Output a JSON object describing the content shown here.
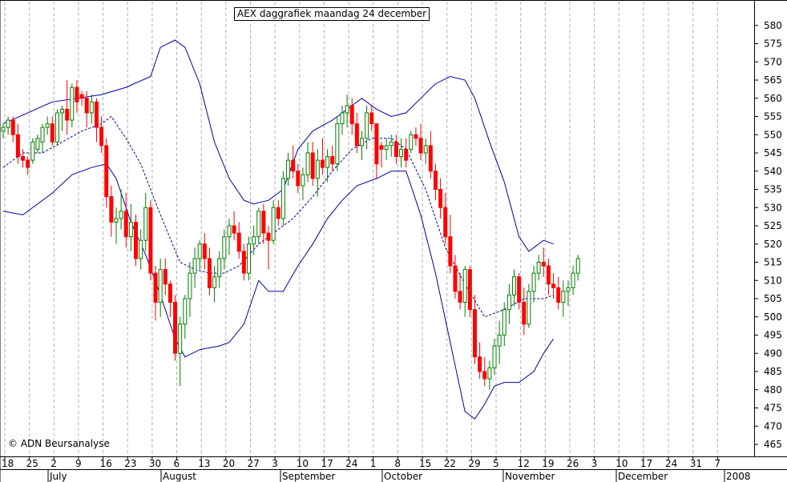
{
  "chart_data": {
    "type": "candlestick",
    "title": "AEX daggrafiek maandag 24 december",
    "credit": "© ADN Beursanalyse",
    "ylim": [
      460,
      585
    ],
    "y_ticks": [
      465,
      470,
      475,
      480,
      485,
      490,
      495,
      500,
      505,
      510,
      515,
      520,
      525,
      530,
      535,
      540,
      545,
      550,
      555,
      560,
      565,
      570,
      575,
      580
    ],
    "x_ticks": [
      "18",
      "25",
      "2",
      "9",
      "16",
      "23",
      "30",
      "6",
      "13",
      "20",
      "27",
      "3",
      "10",
      "17",
      "24",
      "1",
      "8",
      "15",
      "22",
      "29",
      "5",
      "12",
      "19",
      "26",
      "3",
      "10",
      "17",
      "24",
      "31",
      "7"
    ],
    "months": [
      "July",
      "August",
      "September",
      "October",
      "November",
      "December",
      "2008"
    ],
    "colors": {
      "up": "#008000",
      "down": "#ff0000",
      "band": "#0000aa",
      "grid": "#b0b0b0"
    },
    "candles": [
      [
        551,
        553,
        549,
        552
      ],
      [
        552,
        555,
        550,
        554
      ],
      [
        554,
        555,
        548,
        550
      ],
      [
        550,
        553,
        542,
        544
      ],
      [
        544,
        546,
        541,
        543
      ],
      [
        543,
        544,
        539,
        541
      ],
      [
        543,
        549,
        542,
        548
      ],
      [
        546,
        550,
        545,
        549
      ],
      [
        548,
        553,
        545,
        552
      ],
      [
        552,
        555,
        550,
        553
      ],
      [
        553,
        555,
        547,
        548
      ],
      [
        548,
        557,
        547,
        556
      ],
      [
        556,
        558,
        551,
        557
      ],
      [
        557,
        565,
        550,
        554
      ],
      [
        554,
        564,
        552,
        563
      ],
      [
        563,
        565,
        556,
        559
      ],
      [
        561,
        562,
        558,
        560
      ],
      [
        560,
        562,
        552,
        556
      ],
      [
        556,
        561,
        553,
        559
      ],
      [
        559,
        560,
        548,
        552
      ],
      [
        552,
        555,
        545,
        547
      ],
      [
        547,
        549,
        530,
        533
      ],
      [
        533,
        536,
        522,
        526
      ],
      [
        526,
        530,
        520,
        527
      ],
      [
        527,
        535,
        524,
        529
      ],
      [
        529,
        534,
        519,
        522
      ],
      [
        522,
        531,
        518,
        526
      ],
      [
        526,
        528,
        514,
        516
      ],
      [
        516,
        524,
        513,
        521
      ],
      [
        521,
        534,
        518,
        530
      ],
      [
        530,
        532,
        510,
        512
      ],
      [
        512,
        514,
        499,
        504
      ],
      [
        504,
        516,
        500,
        513
      ],
      [
        513,
        516,
        506,
        509
      ],
      [
        509,
        510,
        500,
        504
      ],
      [
        504,
        506,
        488,
        490
      ],
      [
        490,
        500,
        481,
        498
      ],
      [
        498,
        506,
        494,
        505
      ],
      [
        505,
        515,
        500,
        512
      ],
      [
        512,
        519,
        508,
        516
      ],
      [
        516,
        521,
        513,
        520
      ],
      [
        520,
        523,
        513,
        516
      ],
      [
        516,
        519,
        506,
        508
      ],
      [
        508,
        514,
        504,
        511
      ],
      [
        511,
        518,
        508,
        516
      ],
      [
        516,
        524,
        513,
        522
      ],
      [
        522,
        527,
        517,
        525
      ],
      [
        525,
        529,
        521,
        523
      ],
      [
        523,
        526,
        516,
        518
      ],
      [
        518,
        520,
        510,
        512
      ],
      [
        512,
        522,
        510,
        520
      ],
      [
        520,
        525,
        517,
        522
      ],
      [
        522,
        530,
        520,
        529
      ],
      [
        529,
        531,
        520,
        523
      ],
      [
        523,
        525,
        513,
        521
      ],
      [
        521,
        532,
        520,
        530
      ],
      [
        530,
        532,
        525,
        527
      ],
      [
        527,
        540,
        525,
        538
      ],
      [
        538,
        545,
        536,
        543
      ],
      [
        543,
        547,
        538,
        540
      ],
      [
        540,
        542,
        534,
        536
      ],
      [
        536,
        541,
        532,
        539
      ],
      [
        539,
        548,
        537,
        545
      ],
      [
        545,
        548,
        536,
        538
      ],
      [
        538,
        546,
        533,
        543
      ],
      [
        543,
        549,
        539,
        541
      ],
      [
        541,
        546,
        537,
        544
      ],
      [
        544,
        547,
        540,
        542
      ],
      [
        542,
        555,
        540,
        553
      ],
      [
        553,
        558,
        550,
        556
      ],
      [
        556,
        561,
        552,
        558
      ],
      [
        558,
        560,
        550,
        553
      ],
      [
        553,
        556,
        545,
        547
      ],
      [
        547,
        551,
        543,
        549
      ],
      [
        549,
        558,
        546,
        556
      ],
      [
        556,
        558,
        551,
        553
      ],
      [
        553,
        553,
        538,
        542
      ],
      [
        547,
        548,
        541,
        546
      ],
      [
        546,
        549,
        543,
        547
      ],
      [
        547,
        550,
        544,
        548
      ],
      [
        548,
        550,
        542,
        544
      ],
      [
        544,
        549,
        541,
        546
      ],
      [
        546,
        549,
        541,
        543
      ],
      [
        546,
        551,
        545,
        550
      ],
      [
        550,
        552,
        547,
        549
      ],
      [
        549,
        553,
        543,
        545
      ],
      [
        545,
        549,
        542,
        547
      ],
      [
        547,
        551,
        538,
        540
      ],
      [
        540,
        542,
        532,
        535
      ],
      [
        535,
        538,
        527,
        530
      ],
      [
        530,
        534,
        520,
        522
      ],
      [
        522,
        528,
        512,
        514
      ],
      [
        514,
        517,
        505,
        507
      ],
      [
        507,
        512,
        502,
        504
      ],
      [
        504,
        514,
        500,
        513
      ],
      [
        513,
        514,
        500,
        502
      ],
      [
        502,
        506,
        487,
        489
      ],
      [
        489,
        493,
        483,
        485
      ],
      [
        485,
        489,
        481,
        483
      ],
      [
        483,
        488,
        480,
        486
      ],
      [
        486,
        494,
        484,
        492
      ],
      [
        492,
        499,
        487,
        495
      ],
      [
        495,
        504,
        492,
        502
      ],
      [
        502,
        509,
        498,
        506
      ],
      [
        506,
        513,
        503,
        511
      ],
      [
        511,
        512,
        502,
        504
      ],
      [
        504,
        508,
        495,
        498
      ],
      [
        498,
        509,
        497,
        507
      ],
      [
        507,
        514,
        504,
        512
      ],
      [
        512,
        517,
        510,
        515
      ],
      [
        515,
        519,
        511,
        514
      ],
      [
        514,
        516,
        506,
        509
      ],
      [
        509,
        512,
        505,
        508
      ],
      [
        508,
        511,
        502,
        504
      ],
      [
        504,
        510,
        500,
        507
      ],
      [
        507,
        510,
        503,
        508
      ],
      [
        508,
        514,
        506,
        512
      ],
      [
        512,
        517,
        510,
        516
      ]
    ],
    "upper_band": [
      [
        0,
        553
      ],
      [
        10,
        559
      ],
      [
        20,
        561
      ],
      [
        25,
        563
      ],
      [
        30,
        566
      ],
      [
        32,
        574
      ],
      [
        35,
        576
      ],
      [
        37,
        574
      ],
      [
        40,
        564
      ],
      [
        43,
        548
      ],
      [
        46,
        538
      ],
      [
        49,
        532
      ],
      [
        51,
        531
      ],
      [
        54,
        532
      ],
      [
        57,
        535
      ],
      [
        60,
        546
      ],
      [
        63,
        551
      ],
      [
        67,
        554
      ],
      [
        70,
        557
      ],
      [
        73,
        560
      ],
      [
        76,
        557
      ],
      [
        79,
        555
      ],
      [
        82,
        556
      ],
      [
        85,
        560
      ],
      [
        88,
        564
      ],
      [
        91,
        566
      ],
      [
        94,
        565
      ],
      [
        96,
        560
      ],
      [
        99,
        548
      ],
      [
        102,
        537
      ],
      [
        105,
        522
      ],
      [
        107,
        518
      ],
      [
        110,
        521
      ],
      [
        112,
        520
      ]
    ],
    "lower_band": [
      [
        0,
        529
      ],
      [
        4,
        528
      ],
      [
        10,
        534
      ],
      [
        14,
        539
      ],
      [
        18,
        541
      ],
      [
        21,
        542
      ],
      [
        23,
        538
      ],
      [
        26,
        526
      ],
      [
        29,
        517
      ],
      [
        32,
        506
      ],
      [
        35,
        494
      ],
      [
        37,
        489
      ],
      [
        40,
        491
      ],
      [
        44,
        492
      ],
      [
        46,
        493
      ],
      [
        49,
        498
      ],
      [
        52,
        510
      ],
      [
        54,
        507
      ],
      [
        57,
        507
      ],
      [
        60,
        514
      ],
      [
        63,
        520
      ],
      [
        66,
        527
      ],
      [
        69,
        532
      ],
      [
        72,
        536
      ],
      [
        76,
        538
      ],
      [
        79,
        540
      ],
      [
        82,
        540
      ],
      [
        85,
        528
      ],
      [
        88,
        512
      ],
      [
        91,
        493
      ],
      [
        94,
        474
      ],
      [
        96,
        472
      ],
      [
        98,
        476
      ],
      [
        100,
        481
      ],
      [
        102,
        482
      ],
      [
        105,
        482
      ],
      [
        108,
        485
      ],
      [
        110,
        490
      ],
      [
        112,
        494
      ]
    ],
    "middle_band": [
      [
        0,
        541
      ],
      [
        4,
        545
      ],
      [
        8,
        545
      ],
      [
        12,
        548
      ],
      [
        16,
        551
      ],
      [
        20,
        553
      ],
      [
        22,
        555
      ],
      [
        25,
        549
      ],
      [
        28,
        542
      ],
      [
        32,
        528
      ],
      [
        36,
        515
      ],
      [
        39,
        513
      ],
      [
        42,
        512
      ],
      [
        45,
        512
      ],
      [
        48,
        514
      ],
      [
        52,
        520
      ],
      [
        55,
        523
      ],
      [
        59,
        527
      ],
      [
        63,
        533
      ],
      [
        67,
        540
      ],
      [
        71,
        546
      ],
      [
        75,
        549
      ],
      [
        79,
        549
      ],
      [
        82,
        546
      ],
      [
        86,
        535
      ],
      [
        90,
        519
      ],
      [
        94,
        509
      ],
      [
        98,
        500
      ],
      [
        102,
        502
      ],
      [
        106,
        505
      ],
      [
        110,
        505
      ],
      [
        112,
        506
      ]
    ]
  }
}
